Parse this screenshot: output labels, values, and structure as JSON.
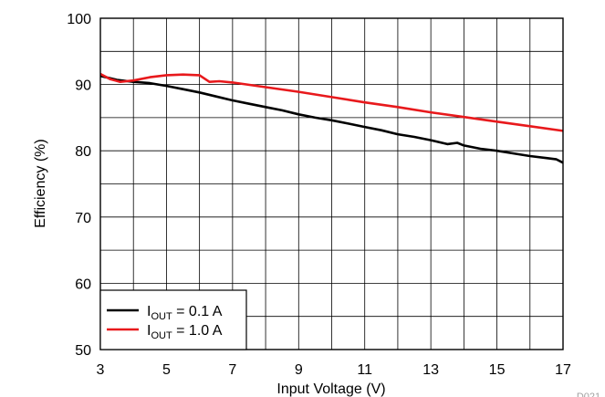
{
  "chart_data": {
    "type": "line",
    "title": "",
    "xlabel": "Input Voltage (V)",
    "ylabel": "Efficiency (%)",
    "xlim": [
      3,
      17
    ],
    "ylim": [
      50,
      100
    ],
    "xticks": [
      3,
      5,
      7,
      9,
      11,
      13,
      15,
      17
    ],
    "yticks": [
      50,
      60,
      70,
      80,
      90,
      100
    ],
    "grid": true,
    "legend_position": "bottom-left",
    "figure_id": "D021",
    "series": [
      {
        "name_main": "I",
        "name_sub": "OUT",
        "name_rest": " = 0.1 A",
        "color": "#000000",
        "x": [
          3.0,
          3.5,
          4.0,
          4.5,
          5.0,
          5.5,
          6.0,
          6.5,
          7.0,
          7.5,
          8.0,
          8.5,
          9.0,
          9.5,
          10.0,
          10.5,
          11.0,
          11.5,
          12.0,
          12.5,
          13.0,
          13.5,
          13.8,
          14.0,
          14.5,
          15.0,
          15.5,
          16.0,
          16.5,
          16.8,
          17.0
        ],
        "y": [
          91.3,
          90.7,
          90.4,
          90.2,
          89.8,
          89.3,
          88.8,
          88.2,
          87.6,
          87.1,
          86.6,
          86.1,
          85.5,
          85.0,
          84.6,
          84.1,
          83.6,
          83.1,
          82.5,
          82.1,
          81.6,
          81.0,
          81.2,
          80.8,
          80.3,
          80.0,
          79.6,
          79.2,
          78.9,
          78.7,
          78.2
        ]
      },
      {
        "name_main": "I",
        "name_sub": "OUT",
        "name_rest": " = 1.0 A",
        "color": "#e8191c",
        "x": [
          3.0,
          3.3,
          3.6,
          4.0,
          4.5,
          5.0,
          5.5,
          6.0,
          6.3,
          6.6,
          7.0,
          8.0,
          9.0,
          10.0,
          11.0,
          12.0,
          13.0,
          14.0,
          15.0,
          16.0,
          17.0
        ],
        "y": [
          91.6,
          90.8,
          90.4,
          90.6,
          91.1,
          91.4,
          91.5,
          91.4,
          90.4,
          90.5,
          90.3,
          89.6,
          88.9,
          88.1,
          87.3,
          86.6,
          85.8,
          85.1,
          84.4,
          83.7,
          83.0
        ]
      }
    ]
  }
}
